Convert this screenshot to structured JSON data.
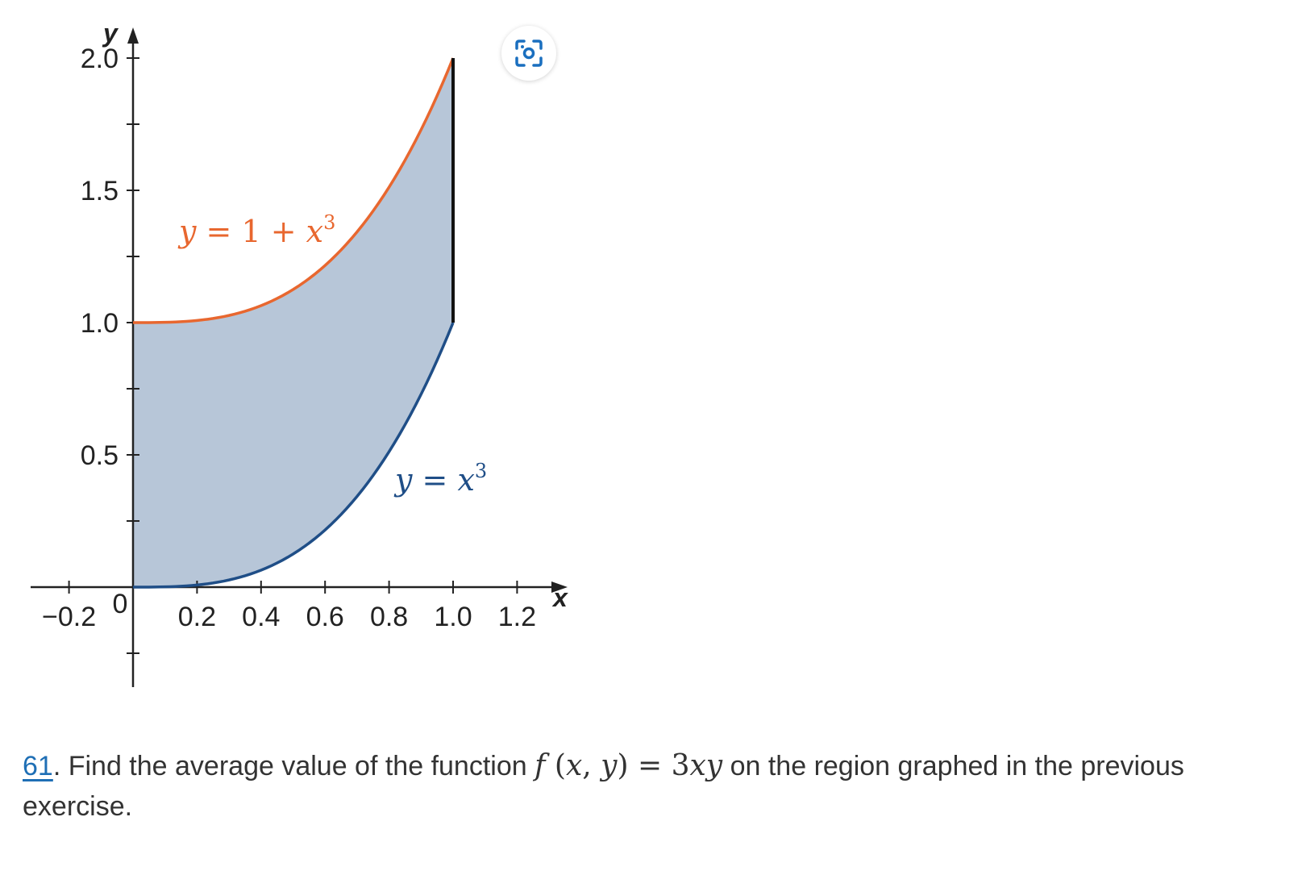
{
  "chart_data": {
    "type": "area",
    "title": "",
    "xlabel": "x",
    "ylabel": "y",
    "xlim": [
      -0.2,
      1.2
    ],
    "ylim": [
      -0.4,
      2.0
    ],
    "x_tick_labels": [
      "−0.2",
      "0",
      "0.2",
      "0.4",
      "0.6",
      "0.8",
      "1.0",
      "1.2"
    ],
    "y_tick_labels": [
      "2.0",
      "1.5",
      "1.0",
      "0.5"
    ],
    "grid": false,
    "series": [
      {
        "name": "y = 1 + x³",
        "color": "#e8672f",
        "x": [
          0,
          0.1,
          0.2,
          0.3,
          0.4,
          0.5,
          0.6,
          0.7,
          0.8,
          0.9,
          1.0
        ],
        "y": [
          1.0,
          1.001,
          1.008,
          1.027,
          1.064,
          1.125,
          1.216,
          1.343,
          1.512,
          1.729,
          2.0
        ]
      },
      {
        "name": "y = x³",
        "color": "#1f4e87",
        "x": [
          0,
          0.1,
          0.2,
          0.3,
          0.4,
          0.5,
          0.6,
          0.7,
          0.8,
          0.9,
          1.0
        ],
        "y": [
          0.0,
          0.001,
          0.008,
          0.027,
          0.064,
          0.125,
          0.216,
          0.343,
          0.512,
          0.729,
          1.0
        ]
      }
    ],
    "shaded_region": {
      "x_range": [
        0,
        1
      ],
      "between": [
        "y = x³",
        "y = 1 + x³"
      ],
      "color": "#b7c6d8"
    },
    "annotations": [
      {
        "text_parts": [
          "y",
          " = 1 + ",
          "x",
          "3"
        ],
        "color": "#e8672f"
      },
      {
        "text_parts": [
          "y",
          " = ",
          "x",
          "3"
        ],
        "color": "#1f4e87"
      }
    ]
  },
  "exercise": {
    "number": "61",
    "text_before": ". Find the average value of the function ",
    "formula": {
      "f": "f",
      "lp": " (",
      "x": "x",
      "comma": ", ",
      "y": "y",
      "rp": ")",
      "eq": " = ",
      "rhs_num": "3",
      "rhs_vars": "xy"
    },
    "text_after": " on the region graphed in the previous exercise."
  },
  "image_action": {
    "icon": "scan-icon",
    "color": "#1a6fbf"
  }
}
